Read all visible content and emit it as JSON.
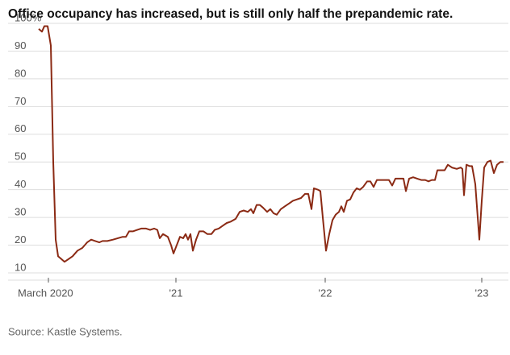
{
  "chart_data": {
    "type": "line",
    "title": "Office occupancy has increased, but is still only half the prepandemic rate.",
    "source": "Source: Kastle Systems.",
    "x": [
      0,
      4,
      7,
      11,
      15,
      18,
      21,
      24,
      28,
      32,
      37,
      42,
      48,
      54,
      60,
      65,
      70,
      75,
      79,
      85,
      92,
      98,
      104,
      108,
      112,
      117,
      122,
      127,
      133,
      138,
      143,
      147,
      150,
      154,
      160,
      164,
      167,
      171,
      175,
      179,
      182,
      185,
      188,
      191,
      195,
      199,
      204,
      209,
      214,
      218,
      223,
      228,
      233,
      238,
      244,
      249,
      254,
      259,
      263,
      266,
      270,
      274,
      278,
      283,
      287,
      291,
      295,
      300,
      305,
      310,
      315,
      320,
      325,
      330,
      334,
      338,
      341,
      346,
      349,
      352,
      356,
      360,
      364,
      368,
      372,
      375,
      378,
      382,
      386,
      390,
      394,
      398,
      402,
      407,
      411,
      415,
      419,
      424,
      429,
      434,
      438,
      442,
      447,
      452,
      455,
      459,
      464,
      469,
      474,
      479,
      483,
      487,
      491,
      494,
      498,
      503,
      507,
      512,
      518,
      523,
      525,
      527,
      530,
      534,
      537,
      541,
      544,
      546,
      549,
      552,
      556,
      560,
      564,
      568,
      572,
      576
    ],
    "series": [
      {
        "name": "Office occupancy",
        "color": "#8b2a14",
        "values": [
          98,
          97,
          99,
          99,
          92,
          50,
          22,
          16,
          15,
          14,
          15,
          16,
          18,
          19,
          21,
          22,
          21.5,
          21,
          21.5,
          21.5,
          22,
          22.5,
          23,
          23,
          25,
          25,
          25.5,
          26,
          26,
          25.5,
          26,
          25.5,
          22.5,
          24,
          23,
          20,
          17,
          20,
          23,
          22.5,
          24,
          22,
          24,
          18,
          22,
          25,
          25,
          24,
          24,
          25.5,
          26,
          27,
          28,
          28.5,
          29.5,
          32,
          32.5,
          32,
          33,
          31.5,
          34.5,
          34.5,
          33.5,
          32,
          33,
          31.5,
          31,
          33,
          34,
          35,
          36,
          36.5,
          37,
          38.5,
          38.5,
          33,
          40.5,
          40,
          39.5,
          30,
          18,
          24,
          29,
          31,
          32,
          34,
          32,
          36,
          36.5,
          39,
          40.5,
          40,
          41,
          43,
          43,
          41,
          43.5,
          43.5,
          43.5,
          43.5,
          41.5,
          44,
          44,
          44,
          39.5,
          44,
          44.5,
          44,
          43.5,
          43.5,
          43,
          43.5,
          43.5,
          47,
          47,
          47,
          49,
          48,
          47.5,
          48,
          47.5,
          38,
          49,
          48.5,
          48.5,
          42,
          30,
          22,
          36,
          48,
          50,
          50.5,
          46,
          49,
          50,
          50
        ]
      }
    ],
    "xlim": [
      0,
      576
    ],
    "xticks": [
      {
        "value": 12,
        "label": "March 2020"
      },
      {
        "value": 170,
        "label": "'21"
      },
      {
        "value": 355,
        "label": "'22"
      },
      {
        "value": 549,
        "label": "'23"
      }
    ],
    "ylim": [
      10,
      100
    ],
    "yticks": [
      10,
      20,
      30,
      40,
      50,
      60,
      70,
      80,
      90,
      {
        "value": 100,
        "label": "100%"
      }
    ],
    "grid": true
  }
}
